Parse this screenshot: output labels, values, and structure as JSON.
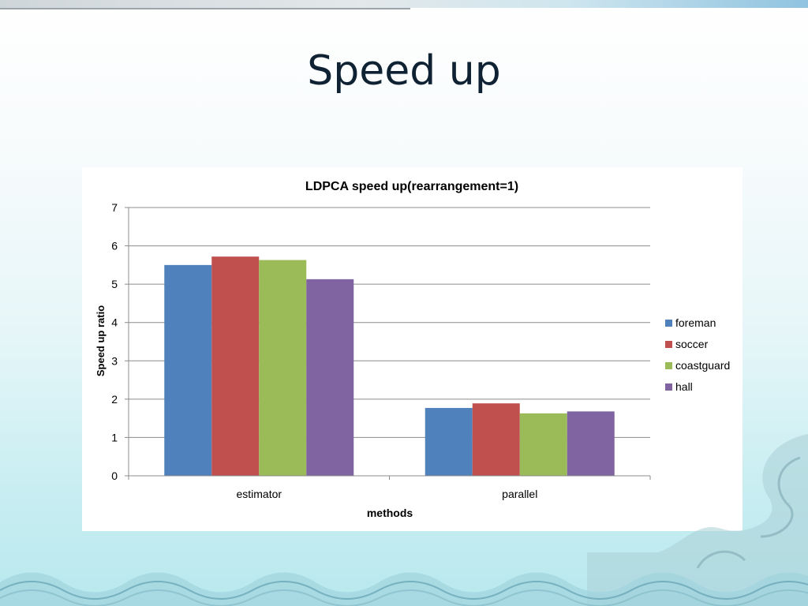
{
  "slide": {
    "title": "Speed up"
  },
  "chart_data": {
    "type": "bar",
    "title": "LDPCA speed up(rearrangement=1)",
    "xlabel": "methods",
    "ylabel": "Speed up ratio",
    "categories": [
      "estimator",
      "parallel"
    ],
    "ylim": [
      0,
      7
    ],
    "yticks": [
      0,
      1,
      2,
      3,
      4,
      5,
      6,
      7
    ],
    "grid": true,
    "legend_position": "right",
    "series": [
      {
        "name": "foreman",
        "color": "#4F81BD",
        "values": [
          5.5,
          1.77
        ]
      },
      {
        "name": "soccer",
        "color": "#C0504D",
        "values": [
          5.72,
          1.89
        ]
      },
      {
        "name": "coastguard",
        "color": "#9BBB59",
        "values": [
          5.63,
          1.63
        ]
      },
      {
        "name": "hall",
        "color": "#8064A2",
        "values": [
          5.13,
          1.68
        ]
      }
    ]
  }
}
